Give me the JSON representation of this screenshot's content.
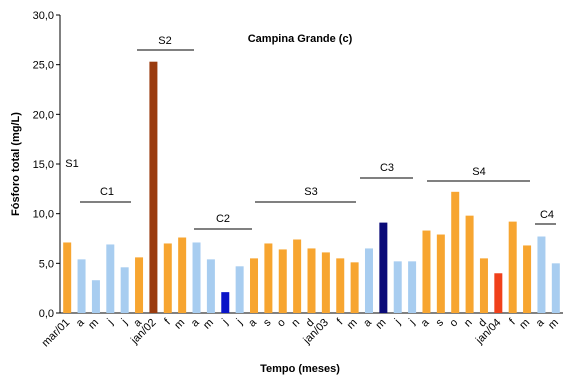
{
  "chart_data": {
    "type": "bar",
    "title": "Campina Grande (c)",
    "x_label": "Tempo (meses)",
    "y_label": "Fósforo total (mg/L)",
    "categories": [
      "mar/01",
      "a",
      "m",
      "j",
      "j",
      "a",
      "jan/02",
      "f",
      "m",
      "a",
      "m",
      "j",
      "j",
      "a",
      "s",
      "o",
      "n",
      "d",
      "jan/03",
      "f",
      "m",
      "a",
      "m",
      "j",
      "j",
      "a",
      "s",
      "o",
      "n",
      "d",
      "jan/04",
      "f",
      "m",
      "a",
      "m"
    ],
    "values": [
      7.1,
      5.4,
      3.3,
      6.9,
      4.6,
      5.6,
      25.3,
      7.0,
      7.6,
      7.1,
      5.4,
      2.1,
      4.7,
      5.5,
      7.0,
      6.4,
      7.4,
      6.5,
      6.1,
      5.5,
      5.1,
      6.5,
      9.1,
      5.2,
      5.2,
      8.3,
      7.9,
      12.2,
      9.8,
      5.5,
      4.0,
      9.2,
      6.8,
      7.7,
      5.0
    ],
    "colors": [
      "#f7a530",
      "#a8cdf0",
      "#a8cdf0",
      "#a8cdf0",
      "#a8cdf0",
      "#f7a530",
      "#9a3b0e",
      "#f7a530",
      "#f7a530",
      "#a8cdf0",
      "#a8cdf0",
      "#0a14c8",
      "#a8cdf0",
      "#f7a530",
      "#f7a530",
      "#f7a530",
      "#f7a530",
      "#f7a530",
      "#f7a530",
      "#f7a530",
      "#f7a530",
      "#a8cdf0",
      "#0a0a78",
      "#a8cdf0",
      "#a8cdf0",
      "#f7a530",
      "#f7a530",
      "#f7a530",
      "#f7a530",
      "#f7a530",
      "#f0401a",
      "#f7a530",
      "#f7a530",
      "#a8cdf0",
      "#a8cdf0"
    ],
    "ylim": [
      0,
      30
    ],
    "yticks": [
      {
        "value": 0,
        "label": "0,0"
      },
      {
        "value": 5,
        "label": "5,0"
      },
      {
        "value": 10,
        "label": "10,0"
      },
      {
        "value": 15,
        "label": "15,0"
      },
      {
        "value": 20,
        "label": "20,0"
      },
      {
        "value": 25,
        "label": "25,0"
      },
      {
        "value": 30,
        "label": "30,0"
      }
    ],
    "grid": false,
    "annotations": [
      "S1",
      "C1",
      "S2",
      "C2",
      "S3",
      "C3",
      "S4",
      "C4"
    ]
  }
}
